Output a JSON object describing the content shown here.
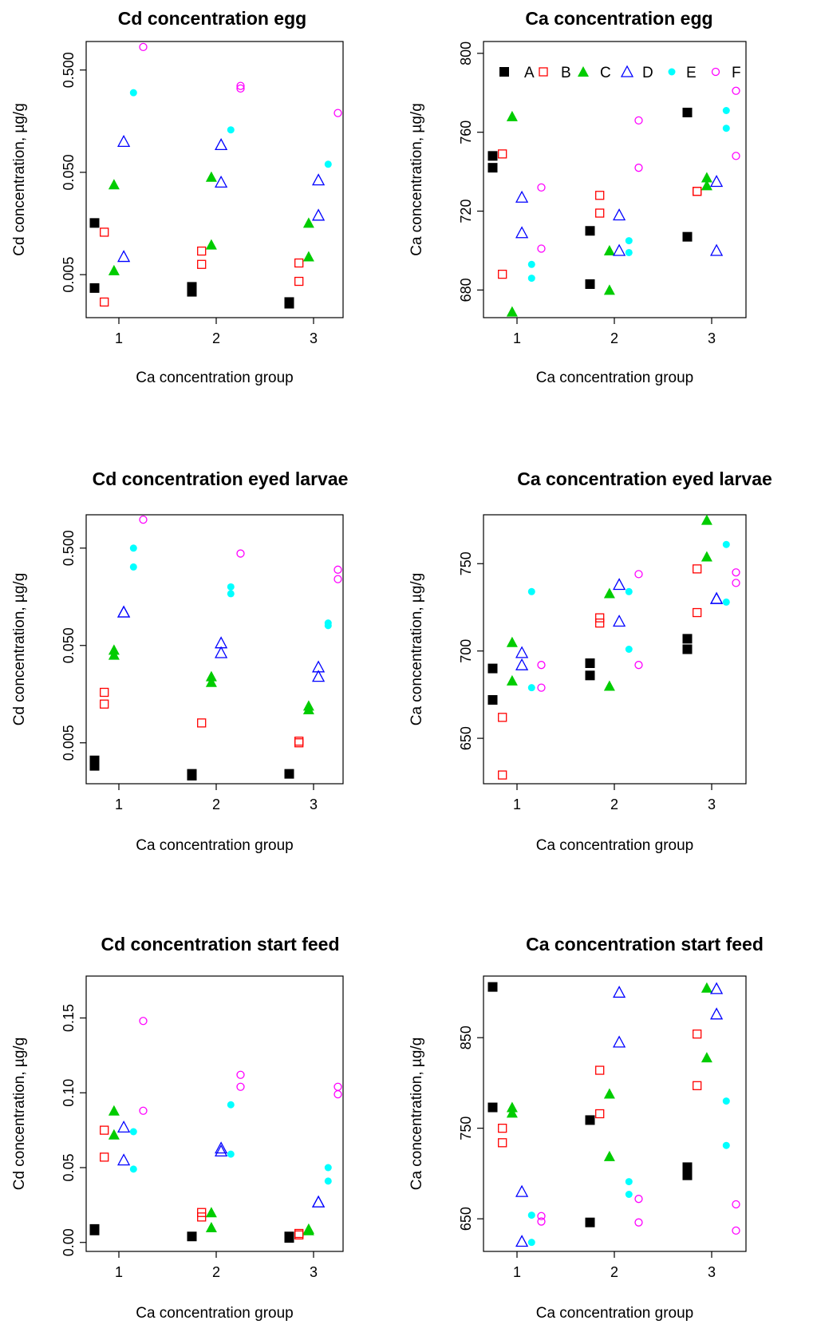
{
  "legend": {
    "entries": [
      {
        "label": "A",
        "color": "#000000",
        "marker": "filled-square"
      },
      {
        "label": "B",
        "color": "#ff0000",
        "marker": "open-square"
      },
      {
        "label": "C",
        "color": "#00cc00",
        "marker": "filled-triangle"
      },
      {
        "label": "D",
        "color": "#0000ff",
        "marker": "open-triangle"
      },
      {
        "label": "E",
        "color": "#00ffff",
        "marker": "filled-circle"
      },
      {
        "label": "F",
        "color": "#ff00ff",
        "marker": "open-circle"
      }
    ],
    "location": "top of Ca concentration egg panel"
  },
  "chart_data": [
    {
      "type": "scatter",
      "title": "Cd concentration egg",
      "xlabel": "Ca concentration group",
      "ylabel": "Cd concentration, µg/g",
      "scale": "log",
      "ylim": [
        0.0019,
        0.95
      ],
      "yticks": [
        0.005,
        0.05,
        0.5
      ],
      "ytick_labels": [
        "0.005",
        "0.050",
        "0.500"
      ],
      "xticks": [
        1,
        2,
        3
      ],
      "series": [
        {
          "name": "A",
          "points": [
            [
              1,
              0.016
            ],
            [
              1,
              0.0037
            ],
            [
              2,
              0.0038
            ],
            [
              2,
              0.0034
            ],
            [
              3,
              0.0027
            ],
            [
              3,
              0.0026
            ]
          ]
        },
        {
          "name": "B",
          "points": [
            [
              1,
              0.013
            ],
            [
              1,
              0.0027
            ],
            [
              2,
              0.0085
            ],
            [
              2,
              0.0063
            ],
            [
              3,
              0.0065
            ],
            [
              3,
              0.0043
            ]
          ]
        },
        {
          "name": "C",
          "points": [
            [
              1,
              0.038
            ],
            [
              1,
              0.0055
            ],
            [
              2,
              0.045
            ],
            [
              2,
              0.0098
            ],
            [
              3,
              0.016
            ],
            [
              3,
              0.0075
            ]
          ]
        },
        {
          "name": "D",
          "points": [
            [
              1,
              0.1
            ],
            [
              1,
              0.0075
            ],
            [
              2,
              0.093
            ],
            [
              2,
              0.04
            ],
            [
              3,
              0.042
            ],
            [
              3,
              0.019
            ]
          ]
        },
        {
          "name": "E",
          "points": [
            [
              1,
              0.3
            ],
            [
              2,
              0.13
            ],
            [
              3,
              0.06
            ]
          ]
        },
        {
          "name": "F",
          "points": [
            [
              1,
              0.84
            ],
            [
              2,
              0.35
            ],
            [
              2,
              0.33
            ],
            [
              3,
              0.19
            ]
          ]
        }
      ]
    },
    {
      "type": "scatter",
      "title": "Ca concentration egg",
      "xlabel": "Ca concentration group",
      "ylabel": "Ca concentration, µg/g",
      "ylim": [
        666,
        806
      ],
      "yticks": [
        680,
        720,
        760,
        800
      ],
      "ytick_labels": [
        "680",
        "720",
        "760",
        "800"
      ],
      "xticks": [
        1,
        2,
        3
      ],
      "series": [
        {
          "name": "A",
          "points": [
            [
              1,
              748
            ],
            [
              1,
              742
            ],
            [
              2,
              710
            ],
            [
              2,
              683
            ],
            [
              3,
              770
            ],
            [
              3,
              707
            ]
          ]
        },
        {
          "name": "B",
          "points": [
            [
              1,
              749
            ],
            [
              1,
              688
            ],
            [
              2,
              728
            ],
            [
              2,
              719
            ],
            [
              3,
              730
            ],
            [
              3,
              730
            ]
          ]
        },
        {
          "name": "C",
          "points": [
            [
              1,
              768
            ],
            [
              1,
              669
            ],
            [
              2,
              700
            ],
            [
              2,
              680
            ],
            [
              3,
              737
            ],
            [
              3,
              733
            ]
          ]
        },
        {
          "name": "D",
          "points": [
            [
              1,
              727
            ],
            [
              1,
              709
            ],
            [
              2,
              718
            ],
            [
              2,
              700
            ],
            [
              3,
              735
            ],
            [
              3,
              700
            ]
          ]
        },
        {
          "name": "E",
          "points": [
            [
              1,
              693
            ],
            [
              1,
              686
            ],
            [
              2,
              705
            ],
            [
              2,
              699
            ],
            [
              3,
              771
            ],
            [
              3,
              762
            ]
          ]
        },
        {
          "name": "F",
          "points": [
            [
              1,
              732
            ],
            [
              1,
              701
            ],
            [
              2,
              766
            ],
            [
              2,
              742
            ],
            [
              3,
              781
            ],
            [
              3,
              748
            ]
          ]
        }
      ]
    },
    {
      "type": "scatter",
      "title": "Cd concentration eyed larvae",
      "xlabel": "Ca concentration group",
      "ylabel": "Cd concentration, µg/g",
      "scale": "log",
      "ylim": [
        0.0019,
        1.1
      ],
      "yticks": [
        0.005,
        0.05,
        0.5
      ],
      "ytick_labels": [
        "0.005",
        "0.050",
        "0.500"
      ],
      "xticks": [
        1,
        2,
        3
      ],
      "series": [
        {
          "name": "A",
          "points": [
            [
              1,
              0.0033
            ],
            [
              1,
              0.0029
            ],
            [
              2,
              0.0024
            ],
            [
              2,
              0.0023
            ],
            [
              3,
              0.0024
            ]
          ]
        },
        {
          "name": "B",
          "points": [
            [
              1,
              0.0165
            ],
            [
              1,
              0.0125
            ],
            [
              2,
              0.008
            ],
            [
              3,
              0.0052
            ],
            [
              3,
              0.005
            ]
          ]
        },
        {
          "name": "C",
          "points": [
            [
              1,
              0.045
            ],
            [
              1,
              0.04
            ],
            [
              2,
              0.024
            ],
            [
              2,
              0.021
            ],
            [
              3,
              0.012
            ],
            [
              3,
              0.011
            ]
          ]
        },
        {
          "name": "D",
          "points": [
            [
              1,
              0.11
            ],
            [
              1,
              0.11
            ],
            [
              2,
              0.053
            ],
            [
              2,
              0.042
            ],
            [
              3,
              0.03
            ],
            [
              3,
              0.024
            ]
          ]
        },
        {
          "name": "E",
          "points": [
            [
              1,
              0.5
            ],
            [
              1,
              0.32
            ],
            [
              2,
              0.2
            ],
            [
              2,
              0.17
            ],
            [
              3,
              0.085
            ],
            [
              3,
              0.08
            ]
          ]
        },
        {
          "name": "F",
          "points": [
            [
              1,
              0.98
            ],
            [
              2,
              0.44
            ],
            [
              3,
              0.3
            ],
            [
              3,
              0.24
            ]
          ]
        }
      ]
    },
    {
      "type": "scatter",
      "title": "Ca concentration eyed larvae",
      "xlabel": "Ca concentration group",
      "ylabel": "Ca concentration, µg/g",
      "ylim": [
        624,
        778
      ],
      "yticks": [
        650,
        700,
        750
      ],
      "ytick_labels": [
        "650",
        "700",
        "750"
      ],
      "xticks": [
        1,
        2,
        3
      ],
      "series": [
        {
          "name": "A",
          "points": [
            [
              1,
              690
            ],
            [
              1,
              672
            ],
            [
              2,
              693
            ],
            [
              2,
              686
            ],
            [
              3,
              707
            ],
            [
              3,
              701
            ]
          ]
        },
        {
          "name": "B",
          "points": [
            [
              1,
              662
            ],
            [
              1,
              629
            ],
            [
              2,
              719
            ],
            [
              2,
              716
            ],
            [
              3,
              747
            ],
            [
              3,
              722
            ]
          ]
        },
        {
          "name": "C",
          "points": [
            [
              1,
              705
            ],
            [
              1,
              683
            ],
            [
              2,
              733
            ],
            [
              2,
              680
            ],
            [
              3,
              775
            ],
            [
              3,
              754
            ]
          ]
        },
        {
          "name": "D",
          "points": [
            [
              1,
              699
            ],
            [
              1,
              692
            ],
            [
              2,
              738
            ],
            [
              2,
              717
            ],
            [
              3,
              730
            ],
            [
              3,
              730
            ]
          ]
        },
        {
          "name": "E",
          "points": [
            [
              1,
              734
            ],
            [
              1,
              679
            ],
            [
              2,
              734
            ],
            [
              2,
              701
            ],
            [
              3,
              761
            ],
            [
              3,
              728
            ]
          ]
        },
        {
          "name": "F",
          "points": [
            [
              1,
              692
            ],
            [
              1,
              679
            ],
            [
              2,
              744
            ],
            [
              2,
              692
            ],
            [
              3,
              745
            ],
            [
              3,
              739
            ]
          ]
        }
      ]
    },
    {
      "type": "scatter",
      "title": "Cd concentration start feed",
      "xlabel": "Ca concentration group",
      "ylabel": "Cd concentration, µg/g",
      "ylim": [
        -0.006,
        0.178
      ],
      "yticks": [
        0.0,
        0.05,
        0.1,
        0.15
      ],
      "ytick_labels": [
        "0.00",
        "0.05",
        "0.10",
        "0.15"
      ],
      "xticks": [
        1,
        2,
        3
      ],
      "series": [
        {
          "name": "A",
          "points": [
            [
              1,
              0.009
            ],
            [
              1,
              0.008
            ],
            [
              2,
              0.004
            ],
            [
              3,
              0.004
            ],
            [
              3,
              0.003
            ]
          ]
        },
        {
          "name": "B",
          "points": [
            [
              1,
              0.075
            ],
            [
              1,
              0.057
            ],
            [
              2,
              0.02
            ],
            [
              2,
              0.017
            ],
            [
              3,
              0.006
            ],
            [
              3,
              0.005
            ]
          ]
        },
        {
          "name": "C",
          "points": [
            [
              1,
              0.088
            ],
            [
              1,
              0.072
            ],
            [
              2,
              0.02
            ],
            [
              2,
              0.01
            ],
            [
              3,
              0.009
            ],
            [
              3,
              0.008
            ]
          ]
        },
        {
          "name": "D",
          "points": [
            [
              1,
              0.077
            ],
            [
              1,
              0.055
            ],
            [
              2,
              0.063
            ],
            [
              2,
              0.061
            ],
            [
              3,
              0.027
            ],
            [
              3,
              0.027
            ]
          ]
        },
        {
          "name": "E",
          "points": [
            [
              1,
              0.074
            ],
            [
              1,
              0.049
            ],
            [
              2,
              0.092
            ],
            [
              2,
              0.059
            ],
            [
              3,
              0.05
            ],
            [
              3,
              0.041
            ]
          ]
        },
        {
          "name": "F",
          "points": [
            [
              1,
              0.148
            ],
            [
              1,
              0.088
            ],
            [
              2,
              0.112
            ],
            [
              2,
              0.104
            ],
            [
              3,
              0.104
            ],
            [
              3,
              0.099
            ]
          ]
        }
      ]
    },
    {
      "type": "scatter",
      "title": "Ca concentration start feed",
      "xlabel": "Ca concentration group",
      "ylabel": "Ca concentration, µg/g",
      "ylim": [
        614,
        918
      ],
      "yticks": [
        650,
        750,
        850
      ],
      "ytick_labels": [
        "650",
        "750",
        "850"
      ],
      "xticks": [
        1,
        2,
        3
      ],
      "series": [
        {
          "name": "A",
          "points": [
            [
              1,
              906
            ],
            [
              1,
              773
            ],
            [
              2,
              759
            ],
            [
              2,
              646
            ],
            [
              3,
              707
            ],
            [
              3,
              698
            ]
          ]
        },
        {
          "name": "B",
          "points": [
            [
              1,
              750
            ],
            [
              1,
              734
            ],
            [
              2,
              814
            ],
            [
              2,
              766
            ],
            [
              3,
              854
            ],
            [
              3,
              797
            ]
          ]
        },
        {
          "name": "C",
          "points": [
            [
              1,
              773
            ],
            [
              1,
              767
            ],
            [
              2,
              788
            ],
            [
              2,
              719
            ],
            [
              3,
              905
            ],
            [
              3,
              828
            ]
          ]
        },
        {
          "name": "D",
          "points": [
            [
              1,
              680
            ],
            [
              1,
              625
            ],
            [
              2,
              900
            ],
            [
              2,
              845
            ],
            [
              3,
              904
            ],
            [
              3,
              876
            ]
          ]
        },
        {
          "name": "E",
          "points": [
            [
              1,
              654
            ],
            [
              1,
              624
            ],
            [
              2,
              691
            ],
            [
              2,
              677
            ],
            [
              3,
              780
            ],
            [
              3,
              731
            ]
          ]
        },
        {
          "name": "F",
          "points": [
            [
              1,
              653
            ],
            [
              1,
              647
            ],
            [
              2,
              672
            ],
            [
              2,
              646
            ],
            [
              3,
              666
            ],
            [
              3,
              637
            ]
          ]
        }
      ]
    }
  ]
}
